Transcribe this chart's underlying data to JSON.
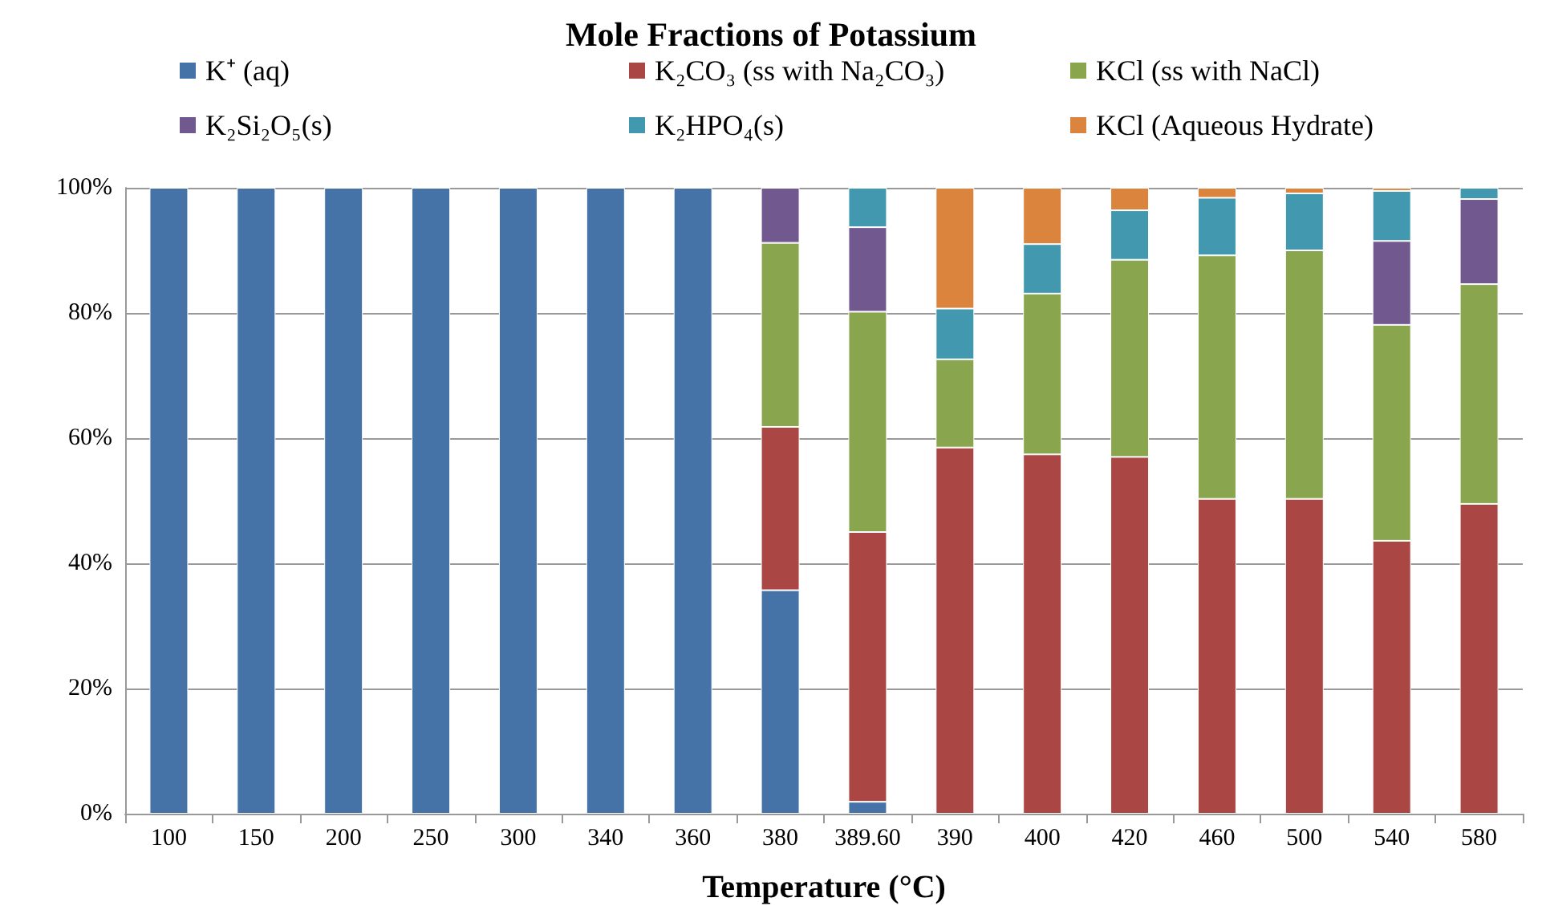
{
  "chart_data": {
    "type": "bar",
    "stacked": true,
    "title": "Mole Fractions of Potassium",
    "xlabel": "Temperature (°C)",
    "categories": [
      "100",
      "150",
      "200",
      "250",
      "300",
      "340",
      "360",
      "380",
      "389.60",
      "390",
      "400",
      "420",
      "460",
      "500",
      "540",
      "580"
    ],
    "series": [
      {
        "name": "K⁺ (aq)",
        "color": "#4572a7",
        "values": [
          100,
          100,
          100,
          100,
          100,
          100,
          100,
          35.7,
          1.9,
          null,
          null,
          null,
          null,
          null,
          null,
          null
        ]
      },
      {
        "name": "K₂CO₃ (ss with Na₂CO₃)",
        "color": "#aa4643",
        "values": [
          null,
          null,
          null,
          null,
          null,
          null,
          null,
          26.1,
          43.1,
          58.5,
          57.4,
          57.0,
          50.3,
          50.3,
          43.6,
          49.5
        ]
      },
      {
        "name": "KCl (ss with NaCl)",
        "color": "#89a54e",
        "values": [
          null,
          null,
          null,
          null,
          null,
          null,
          null,
          29.4,
          35.2,
          14.1,
          25.7,
          31.5,
          38.9,
          39.7,
          34.5,
          35.1
        ]
      },
      {
        "name": "K₂Si₂O₅(s)",
        "color": "#71588f",
        "values": [
          null,
          null,
          null,
          null,
          null,
          null,
          null,
          8.8,
          13.5,
          null,
          null,
          null,
          null,
          null,
          13.4,
          13.6
        ]
      },
      {
        "name": "K₂HPO₄(s)",
        "color": "#4198af",
        "values": [
          null,
          null,
          null,
          null,
          null,
          null,
          null,
          null,
          6.3,
          8.1,
          7.9,
          7.9,
          9.2,
          9.1,
          8.0,
          1.8
        ]
      },
      {
        "name": "KCl (Aqueous Hydrate)",
        "color": "#db843d",
        "values": [
          null,
          null,
          null,
          null,
          null,
          null,
          null,
          null,
          null,
          19.3,
          9.0,
          3.6,
          1.6,
          0.9,
          0.5,
          null
        ]
      }
    ],
    "ylim": [
      0,
      100
    ],
    "yticks": [
      {
        "value": 0,
        "label": "0%"
      },
      {
        "value": 20,
        "label": "20%"
      },
      {
        "value": 40,
        "label": "40%"
      },
      {
        "value": 60,
        "label": "60%"
      },
      {
        "value": 80,
        "label": "80%"
      },
      {
        "value": 100,
        "label": "100%"
      }
    ],
    "grid": "y",
    "legend": "top"
  }
}
